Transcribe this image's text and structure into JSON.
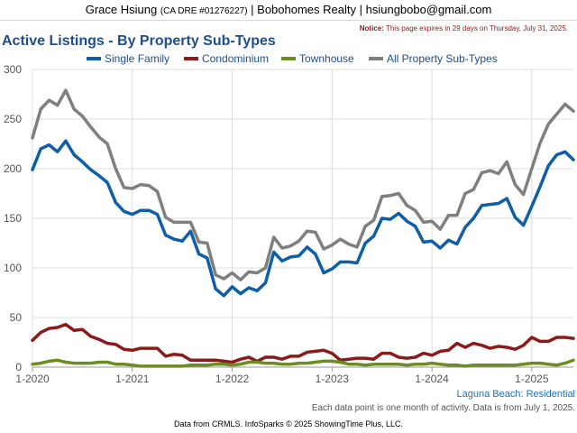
{
  "header": {
    "agent_name": "Grace Hsiung",
    "license": "(CA DRE #01276227)",
    "sep1": " | ",
    "brokerage": "Bobohomes Realty",
    "sep2": " | ",
    "email": "hsiungbobo@gmail.com"
  },
  "notice": {
    "label": "Notice:",
    "text": " This page expires in 29 days on Thursday, July 31, 2025."
  },
  "chart_data": {
    "type": "line",
    "title": "Active Listings - By Property Sub-Types",
    "subtitle": "Laguna Beach: Residential",
    "note": "Each data point is one month of activity. Data is from July 1, 2025.",
    "ylim": [
      0,
      300
    ],
    "yticks": [
      0,
      50,
      100,
      150,
      200,
      250,
      300
    ],
    "xticks": [
      "1-2020",
      "1-2021",
      "1-2022",
      "1-2023",
      "1-2024",
      "1-2025"
    ],
    "x_start": "1-2020",
    "legend_position": "top",
    "grid": true,
    "series": [
      {
        "name": "Single Family",
        "color": "#0e5ea8",
        "values": [
          199,
          220,
          224,
          217,
          228,
          214,
          207,
          199,
          193,
          186,
          166,
          157,
          154,
          158,
          158,
          154,
          133,
          129,
          127,
          137,
          114,
          110,
          79,
          72,
          81,
          74,
          80,
          77,
          85,
          116,
          107,
          111,
          112,
          121,
          114,
          95,
          99,
          106,
          106,
          105,
          125,
          132,
          150,
          149,
          155,
          147,
          142,
          126,
          127,
          120,
          128,
          124,
          141,
          150,
          163,
          164,
          165,
          170,
          151,
          143,
          162,
          182,
          203,
          214,
          217,
          209
        ]
      },
      {
        "name": "Condominium",
        "color": "#8b1a1a",
        "values": [
          27,
          35,
          39,
          40,
          43,
          37,
          38,
          31,
          28,
          24,
          23,
          18,
          17,
          19,
          19,
          19,
          11,
          13,
          12,
          7,
          7,
          7,
          7,
          6,
          5,
          8,
          10,
          6,
          10,
          10,
          8,
          11,
          11,
          15,
          16,
          17,
          14,
          7,
          8,
          9,
          9,
          8,
          14,
          14,
          10,
          9,
          10,
          14,
          12,
          16,
          17,
          24,
          20,
          24,
          22,
          19,
          21,
          20,
          18,
          22,
          30,
          26,
          26,
          30,
          30,
          29
        ]
      },
      {
        "name": "Townhouse",
        "color": "#6b8e23",
        "values": [
          3,
          4,
          6,
          7,
          5,
          4,
          4,
          4,
          5,
          5,
          3,
          3,
          2,
          1,
          1,
          1,
          1,
          1,
          1,
          2,
          2,
          2,
          3,
          3,
          2,
          3,
          5,
          5,
          4,
          4,
          3,
          3,
          4,
          4,
          5,
          6,
          6,
          5,
          3,
          3,
          2,
          3,
          3,
          3,
          3,
          2,
          3,
          3,
          4,
          3,
          2,
          2,
          1,
          2,
          2,
          2,
          2,
          2,
          2,
          3,
          4,
          4,
          3,
          2,
          4,
          7
        ]
      },
      {
        "name": "All Property Sub-Types",
        "color": "#7f7f7f",
        "values": [
          231,
          260,
          269,
          264,
          279,
          260,
          253,
          242,
          232,
          225,
          200,
          181,
          180,
          184,
          183,
          177,
          151,
          146,
          146,
          146,
          126,
          125,
          93,
          89,
          95,
          88,
          96,
          95,
          100,
          131,
          120,
          122,
          127,
          137,
          136,
          119,
          123,
          129,
          124,
          121,
          142,
          148,
          172,
          173,
          175,
          163,
          158,
          146,
          147,
          139,
          153,
          153,
          175,
          179,
          196,
          198,
          195,
          207,
          184,
          174,
          200,
          226,
          245,
          255,
          265,
          258
        ]
      }
    ]
  },
  "footer": {
    "text": "Data from CRMLS. InfoSparks © 2025 ShowingTime Plus, LLC."
  }
}
